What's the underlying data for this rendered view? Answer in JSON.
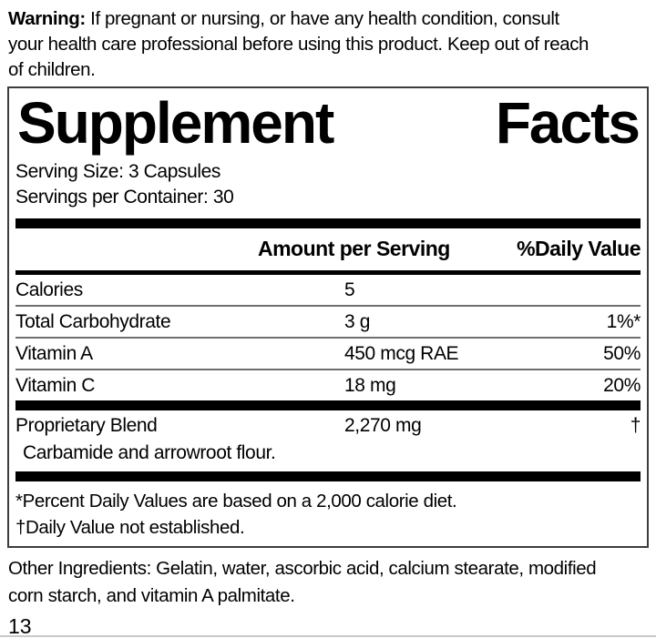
{
  "warning": {
    "label": "Warning:",
    "text": " If pregnant or nursing, or have any health condition, consult\nyour health care professional before using this product. Keep out of reach\nof children."
  },
  "panel": {
    "title_left": "Supplement",
    "title_right": "Facts",
    "serving_size": "Serving Size: 3 Capsules",
    "servings_per_container": "Servings per Container: 30",
    "header": {
      "amount": "Amount per Serving",
      "daily_value": "%Daily Value"
    },
    "rows": [
      {
        "name": "Calories",
        "amount": "5",
        "dv": ""
      },
      {
        "name": "Total Carbohydrate",
        "amount": "3 g",
        "dv": "1%*"
      },
      {
        "name": "Vitamin A",
        "amount": "450 mcg RAE",
        "dv": "50%"
      },
      {
        "name": "Vitamin C",
        "amount": "18 mg",
        "dv": "20%"
      }
    ],
    "proprietary": {
      "name": "Proprietary Blend",
      "amount": "2,270 mg",
      "dv": "†",
      "description": "Carbamide and arrowroot flour."
    },
    "footnotes": [
      "*Percent Daily Values are based on a 2,000 calorie diet.",
      "†Daily Value not established."
    ]
  },
  "other_ingredients": "Other Ingredients: Gelatin, water, ascorbic acid, calcium stearate, modified\ncorn starch, and vitamin A palmitate.",
  "page_number": "13",
  "colors": {
    "text": "#000000",
    "bar": "#000000",
    "panel_border": "#3c3c3c",
    "hairline": "#6e6e6e",
    "background": "#ffffff"
  }
}
